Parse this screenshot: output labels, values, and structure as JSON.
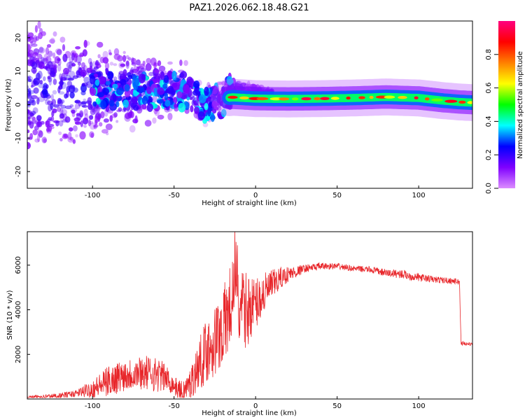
{
  "title": "PAZ1.2026.062.18.48.G21",
  "chart_data": [
    {
      "type": "heatmap",
      "name": "spectrogram",
      "xlabel": "Height of straight line (km)",
      "ylabel": "Frequency (Hz)",
      "xlim": [
        -140,
        133
      ],
      "ylim": [
        -25,
        25
      ],
      "xticks": [
        -100,
        -50,
        0,
        50,
        100
      ],
      "yticks": [
        -20,
        -10,
        0,
        10,
        20
      ],
      "ridge": [
        {
          "x": -40,
          "y": 2.5
        },
        {
          "x": -35,
          "y": -1
        },
        {
          "x": -30,
          "y": -2
        },
        {
          "x": -25,
          "y": -1
        },
        {
          "x": -20,
          "y": 0
        },
        {
          "x": -17,
          "y": 2
        },
        {
          "x": -14,
          "y": 2.2
        },
        {
          "x": 0,
          "y": 1.8
        },
        {
          "x": 20,
          "y": 1.7
        },
        {
          "x": 40,
          "y": 1.8
        },
        {
          "x": 60,
          "y": 2.0
        },
        {
          "x": 80,
          "y": 2.3
        },
        {
          "x": 100,
          "y": 2.0
        },
        {
          "x": 115,
          "y": 1.2
        },
        {
          "x": 125,
          "y": 0.8
        },
        {
          "x": 133,
          "y": 0.6
        }
      ],
      "colorbar": {
        "label": "Normalized spectral amplitude",
        "range": [
          0,
          1
        ],
        "ticks": [
          "0.0",
          "0.2",
          "0.4",
          "0.6",
          "0.8"
        ],
        "colors": [
          "#dc8cff",
          "#7f00ff",
          "#0000ff",
          "#00ffff",
          "#00ff00",
          "#ffff00",
          "#ff8000",
          "#ff0000",
          "#ff0080"
        ]
      }
    },
    {
      "type": "line",
      "name": "snr",
      "xlabel": "Height of straight line (km)",
      "ylabel": "SNR (10 * v/v)",
      "xlim": [
        -140,
        133
      ],
      "ylim": [
        0,
        7500
      ],
      "xticks": [
        -100,
        -50,
        0,
        50,
        100
      ],
      "yticks": [
        2000,
        4000,
        6000
      ],
      "color": "#e8262a",
      "series": [
        {
          "name": "SNR",
          "x": [
            -140,
            -120,
            -110,
            -100,
            -90,
            -80,
            -70,
            -60,
            -55,
            -50,
            -45,
            -40,
            -35,
            -30,
            -25,
            -20,
            -15,
            -12,
            -10,
            -5,
            0,
            5,
            10,
            15,
            20,
            25,
            30,
            35,
            40,
            50,
            60,
            70,
            80,
            90,
            95,
            100,
            110,
            120,
            125,
            126,
            133
          ],
          "y": [
            80,
            150,
            250,
            450,
            800,
            1100,
            1200,
            1100,
            950,
            600,
            250,
            700,
            1500,
            2200,
            2600,
            3200,
            4200,
            4600,
            3900,
            4000,
            4300,
            4700,
            5100,
            5400,
            5600,
            5700,
            5850,
            5900,
            5950,
            5950,
            5850,
            5800,
            5650,
            5600,
            5500,
            5450,
            5350,
            5300,
            5250,
            2500,
            2450
          ]
        }
      ],
      "noise_amplitude": [
        {
          "x": -140,
          "a": 60
        },
        {
          "x": -110,
          "a": 150
        },
        {
          "x": -90,
          "a": 700
        },
        {
          "x": -60,
          "a": 800
        },
        {
          "x": -50,
          "a": 400
        },
        {
          "x": -40,
          "a": 700
        },
        {
          "x": -30,
          "a": 1500
        },
        {
          "x": -20,
          "a": 1800
        },
        {
          "x": -12,
          "a": 2200
        },
        {
          "x": 0,
          "a": 1200
        },
        {
          "x": 10,
          "a": 700
        },
        {
          "x": 20,
          "a": 350
        },
        {
          "x": 30,
          "a": 180
        },
        {
          "x": 60,
          "a": 120
        },
        {
          "x": 90,
          "a": 200
        },
        {
          "x": 125,
          "a": 120
        },
        {
          "x": 133,
          "a": 60
        }
      ]
    }
  ]
}
